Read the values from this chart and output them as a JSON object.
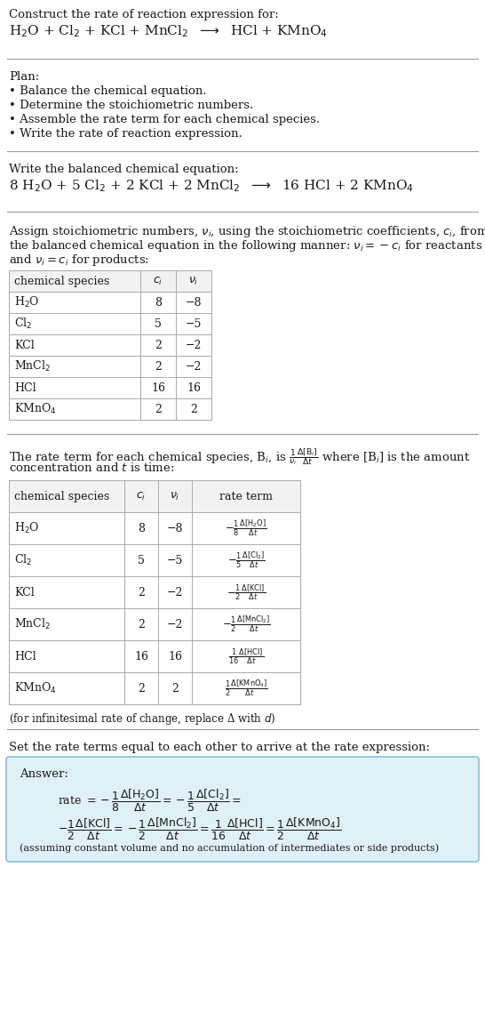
{
  "bg_color": "#ffffff",
  "text_color": "#1a1a1a",
  "title_line1": "Construct the rate of reaction expression for:",
  "plan_header": "Plan:",
  "plan_items": [
    "• Balance the chemical equation.",
    "• Determine the stoichiometric numbers.",
    "• Assemble the rate term for each chemical species.",
    "• Write the rate of reaction expression."
  ],
  "balanced_header": "Write the balanced chemical equation:",
  "assign_text": [
    "Assign stoichiometric numbers, $\\nu_i$, using the stoichiometric coefficients, $c_i$, from",
    "the balanced chemical equation in the following manner: $\\nu_i = -c_i$ for reactants",
    "and $\\nu_i = c_i$ for products:"
  ],
  "table1_headers": [
    "chemical species",
    "$c_i$",
    "$\\nu_i$"
  ],
  "table1_rows": [
    [
      "H$_2$O",
      "8",
      "−8"
    ],
    [
      "Cl$_2$",
      "5",
      "−5"
    ],
    [
      "KCl",
      "2",
      "−2"
    ],
    [
      "MnCl$_2$",
      "2",
      "−2"
    ],
    [
      "HCl",
      "16",
      "16"
    ],
    [
      "KMnO$_4$",
      "2",
      "2"
    ]
  ],
  "rate_text": [
    "The rate term for each chemical species, B$_i$, is $\\frac{1}{\\nu_i}\\frac{\\Delta[\\mathrm{B}_i]}{\\Delta t}$ where [B$_i$] is the amount",
    "concentration and $t$ is time:"
  ],
  "table2_headers": [
    "chemical species",
    "$c_i$",
    "$\\nu_i$",
    "rate term"
  ],
  "table2_rows": [
    [
      "H$_2$O",
      "8",
      "−8",
      "$-\\frac{1}{8}\\frac{\\Delta[\\mathrm{H_2O}]}{\\Delta t}$"
    ],
    [
      "Cl$_2$",
      "5",
      "−5",
      "$-\\frac{1}{5}\\frac{\\Delta[\\mathrm{Cl_2}]}{\\Delta t}$"
    ],
    [
      "KCl",
      "2",
      "−2",
      "$-\\frac{1}{2}\\frac{\\Delta[\\mathrm{KCl}]}{\\Delta t}$"
    ],
    [
      "MnCl$_2$",
      "2",
      "−2",
      "$-\\frac{1}{2}\\frac{\\Delta[\\mathrm{MnCl_2}]}{\\Delta t}$"
    ],
    [
      "HCl",
      "16",
      "16",
      "$\\frac{1}{16}\\frac{\\Delta[\\mathrm{HCl}]}{\\Delta t}$"
    ],
    [
      "KMnO$_4$",
      "2",
      "2",
      "$\\frac{1}{2}\\frac{\\Delta[\\mathrm{KMnO_4}]}{\\Delta t}$"
    ]
  ],
  "infinitesimal_note": "(for infinitesimal rate of change, replace Δ with $d$)",
  "set_rate_text": "Set the rate terms equal to each other to arrive at the rate expression:",
  "answer_label": "Answer:",
  "answer_box_color": "#dff0f7",
  "answer_box_border": "#8bbfd4",
  "answer_note": "(assuming constant volume and no accumulation of intermediates or side products)",
  "line_color": "#999999",
  "table_line_color": "#aaaaaa",
  "table_header_bg": "#f2f2f2"
}
